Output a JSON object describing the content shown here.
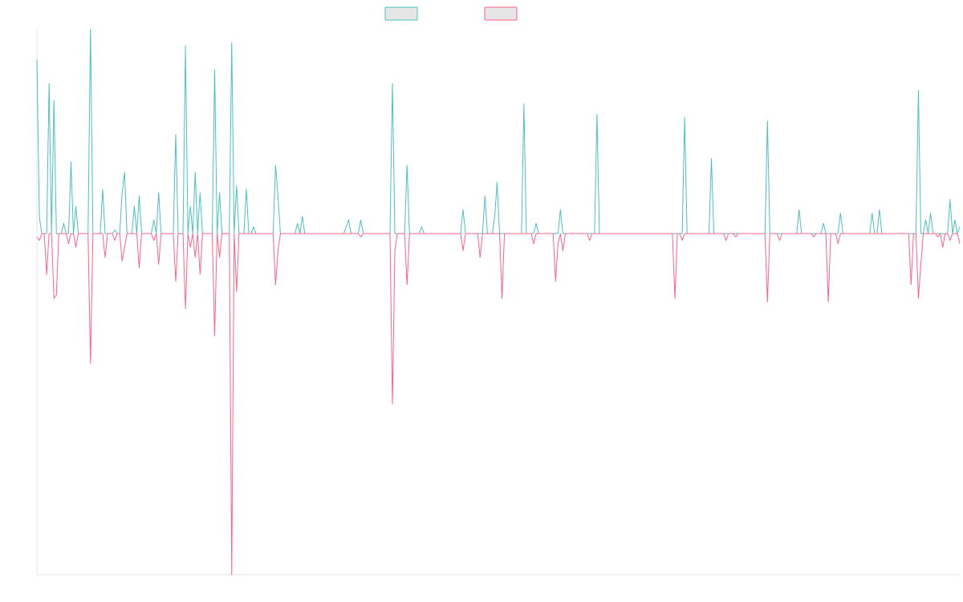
{
  "chart_data": {
    "type": "line",
    "title": "",
    "xlabel": "",
    "ylabel": "",
    "grid": false,
    "legend_position": "top-center",
    "ylim": [
      -100,
      60
    ],
    "x_count": 380,
    "series": [
      {
        "name": "",
        "color": "#4bc0c0",
        "points": [
          [
            0,
            51
          ],
          [
            1,
            5
          ],
          [
            2,
            0
          ],
          [
            5,
            44
          ],
          [
            7,
            39
          ],
          [
            8,
            0
          ],
          [
            11,
            3
          ],
          [
            14,
            21
          ],
          [
            16,
            8
          ],
          [
            18,
            0
          ],
          [
            20,
            0
          ],
          [
            22,
            60
          ],
          [
            24,
            0
          ],
          [
            27,
            13
          ],
          [
            30,
            0
          ],
          [
            32,
            1
          ],
          [
            35,
            12
          ],
          [
            36,
            18
          ],
          [
            38,
            0
          ],
          [
            40,
            8
          ],
          [
            42,
            11
          ],
          [
            44,
            0
          ],
          [
            48,
            4
          ],
          [
            50,
            12
          ],
          [
            52,
            0
          ],
          [
            57,
            29
          ],
          [
            58,
            0
          ],
          [
            61,
            55
          ],
          [
            63,
            8
          ],
          [
            65,
            18
          ],
          [
            67,
            12
          ],
          [
            69,
            0
          ],
          [
            73,
            48
          ],
          [
            75,
            12
          ],
          [
            79,
            0
          ],
          [
            80,
            56
          ],
          [
            81,
            0
          ],
          [
            82,
            14
          ],
          [
            86,
            13
          ],
          [
            89,
            2
          ],
          [
            98,
            20
          ],
          [
            99,
            11
          ],
          [
            107,
            3
          ],
          [
            109,
            5
          ],
          [
            127,
            2
          ],
          [
            128,
            4
          ],
          [
            133,
            4
          ],
          [
            146,
            44
          ],
          [
            152,
            20
          ],
          [
            158,
            2
          ],
          [
            175,
            7
          ],
          [
            184,
            11
          ],
          [
            188,
            5
          ],
          [
            189,
            15
          ],
          [
            200,
            38
          ],
          [
            205,
            3
          ],
          [
            215,
            7
          ],
          [
            230,
            35
          ],
          [
            266,
            34
          ],
          [
            277,
            22
          ],
          [
            300,
            33
          ],
          [
            313,
            7
          ],
          [
            323,
            3
          ],
          [
            330,
            6
          ],
          [
            343,
            6
          ],
          [
            346,
            7
          ],
          [
            362,
            42
          ],
          [
            365,
            4
          ],
          [
            367,
            6
          ],
          [
            375,
            10
          ],
          [
            377,
            4
          ],
          [
            379,
            2
          ]
        ]
      },
      {
        "name": "",
        "color": "#ff6384",
        "points": [
          [
            0,
            -1
          ],
          [
            1,
            -2
          ],
          [
            4,
            -12
          ],
          [
            7,
            -19
          ],
          [
            8,
            -18
          ],
          [
            13,
            -3
          ],
          [
            16,
            -4
          ],
          [
            22,
            -38
          ],
          [
            28,
            -7
          ],
          [
            32,
            -2
          ],
          [
            35,
            -8
          ],
          [
            36,
            -4
          ],
          [
            42,
            -10
          ],
          [
            48,
            -2
          ],
          [
            50,
            -9
          ],
          [
            57,
            -14
          ],
          [
            61,
            -22
          ],
          [
            63,
            -4
          ],
          [
            65,
            -7
          ],
          [
            67,
            -12
          ],
          [
            73,
            -30
          ],
          [
            75,
            -7
          ],
          [
            80,
            -100
          ],
          [
            82,
            -17
          ],
          [
            98,
            -15
          ],
          [
            99,
            -5
          ],
          [
            133,
            -1
          ],
          [
            146,
            -50
          ],
          [
            147,
            -5
          ],
          [
            152,
            -15
          ],
          [
            175,
            -5
          ],
          [
            182,
            -7
          ],
          [
            191,
            -19
          ],
          [
            204,
            -3
          ],
          [
            213,
            -14
          ],
          [
            214,
            -3
          ],
          [
            216,
            -5
          ],
          [
            227,
            -2
          ],
          [
            262,
            -19
          ],
          [
            265,
            -2
          ],
          [
            283,
            -2
          ],
          [
            287,
            -1
          ],
          [
            300,
            -20
          ],
          [
            305,
            -2
          ],
          [
            319,
            -1
          ],
          [
            325,
            -20
          ],
          [
            329,
            -3
          ],
          [
            359,
            -15
          ],
          [
            362,
            -19
          ],
          [
            363,
            -9
          ],
          [
            370,
            -1
          ],
          [
            372,
            -4
          ],
          [
            375,
            -2
          ],
          [
            379,
            -3
          ]
        ]
      }
    ]
  }
}
